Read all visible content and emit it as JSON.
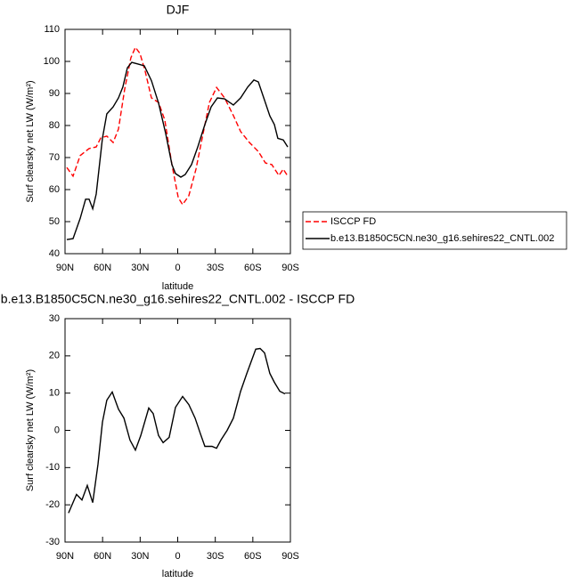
{
  "chart_data": [
    {
      "type": "line",
      "title": "DJF",
      "xlabel": "latitude",
      "ylabel": "Surf clearsky net LW (W/m²)",
      "xlim": [
        90,
        -90
      ],
      "xticks": [
        {
          "value": 90,
          "label": "90N"
        },
        {
          "value": 60,
          "label": "60N"
        },
        {
          "value": 30,
          "label": "30N"
        },
        0,
        {
          "value": -30,
          "label": "30S"
        },
        {
          "value": -60,
          "label": "60S"
        },
        {
          "value": -90,
          "label": "90S"
        }
      ],
      "ylim": [
        40,
        110
      ],
      "yticks": [
        40,
        50,
        60,
        70,
        80,
        90,
        100,
        110
      ],
      "legend": true,
      "series": [
        {
          "name": "ISCCP FD",
          "color": "#ff0000",
          "dash": true,
          "x": [
            88.6,
            83.6,
            77.9,
            70.8,
            65.1,
            61.5,
            56.6,
            51.6,
            47.3,
            42.3,
            37.4,
            33.8,
            30.2,
            26.0,
            21.0,
            15.3,
            10.3,
            4.6,
            -0.4,
            -3.9,
            -8.9,
            -14.6,
            -20.3,
            -25.3,
            -31.0,
            -37.4,
            -44.5,
            -50.2,
            -57.3,
            -64.4,
            -70.1,
            -75.1,
            -80.8,
            -84.3,
            -87.9
          ],
          "values": [
            66.9,
            64.2,
            70.6,
            72.8,
            73.3,
            76.1,
            76.7,
            74.7,
            78.9,
            91.4,
            101.1,
            104.4,
            102.5,
            96.9,
            88.6,
            87.2,
            81.7,
            67.8,
            57.5,
            55.3,
            58.1,
            66.4,
            77.5,
            87.2,
            91.9,
            88.6,
            83.1,
            78.1,
            74.7,
            71.9,
            68.3,
            67.8,
            64.4,
            66.4,
            64.2
          ]
        },
        {
          "name": "b.e13.B1850C5CN.ne30_g16.sehires22_CNTL.002",
          "color": "#000000",
          "dash": false,
          "x": [
            88.6,
            83.6,
            77.9,
            73.6,
            70.8,
            67.9,
            65.1,
            60.1,
            56.6,
            51.6,
            47.3,
            43.8,
            40.2,
            36.7,
            31.7,
            26.7,
            21.0,
            15.3,
            9.6,
            4.6,
            1.8,
            -2.5,
            -6.0,
            -11.0,
            -16.0,
            -21.7,
            -26.7,
            -31.7,
            -37.4,
            -44.5,
            -50.2,
            -55.9,
            -60.8,
            -64.4,
            -68.7,
            -73.6,
            -77.2,
            -80.0,
            -84.3,
            -87.9
          ],
          "values": [
            44.4,
            44.7,
            51,
            57,
            57,
            54,
            58.6,
            76,
            83.6,
            85.8,
            88.6,
            92,
            98,
            99.7,
            99.2,
            98.6,
            94,
            87,
            77.5,
            67.8,
            65,
            63.9,
            64.7,
            67.8,
            73.3,
            80.3,
            85.8,
            88.6,
            88.3,
            86.4,
            88.6,
            92,
            94.2,
            93.6,
            88.6,
            83,
            80.3,
            76,
            75.5,
            73.3
          ]
        }
      ]
    },
    {
      "type": "line",
      "title": "b.e13.B1850C5CN.ne30_g16.sehires22_CNTL.002 - ISCCP FD",
      "xlabel": "latitude",
      "ylabel": "Surf clearsky net LW (W/m²)",
      "xlim": [
        90,
        -90
      ],
      "xticks": [
        {
          "value": 90,
          "label": "90N"
        },
        {
          "value": 60,
          "label": "60N"
        },
        {
          "value": 30,
          "label": "30N"
        },
        0,
        {
          "value": -30,
          "label": "30S"
        },
        {
          "value": -60,
          "label": "60S"
        },
        {
          "value": -90,
          "label": "90S"
        }
      ],
      "ylim": [
        -30,
        30
      ],
      "yticks": [
        -30,
        -20,
        -10,
        0,
        10,
        20,
        30
      ],
      "legend": false,
      "series": [
        {
          "color": "#000000",
          "dash": false,
          "x": [
            87.2,
            80.8,
            76.5,
            72.2,
            67.9,
            63.7,
            60.1,
            56.6,
            52.3,
            47.3,
            43.0,
            38.1,
            33.8,
            29.5,
            23.1,
            19.6,
            15.3,
            11.7,
            6.8,
            1.8,
            -3.9,
            -8.9,
            -13.9,
            -18.2,
            -21.7,
            -27.4,
            -31.0,
            -34.5,
            -39.5,
            -44.5,
            -50.2,
            -55.2,
            -62.3,
            -65.8,
            -69.4,
            -73.6,
            -77.2,
            -81.5,
            -85.7
          ],
          "values": [
            -22.2,
            -17.2,
            -18.7,
            -14.8,
            -19.4,
            -9.1,
            2.2,
            8.1,
            10.3,
            5.7,
            3.3,
            -2.6,
            -5.3,
            -1.4,
            6.0,
            4.5,
            -1.4,
            -3.3,
            -1.9,
            6.2,
            9.1,
            6.9,
            3.3,
            -1.0,
            -4.3,
            -4.3,
            -4.8,
            -2.6,
            0,
            3.3,
            10.5,
            15.3,
            21.8,
            22.0,
            20.8,
            15.3,
            12.9,
            10.5,
            9.8
          ]
        }
      ]
    }
  ]
}
